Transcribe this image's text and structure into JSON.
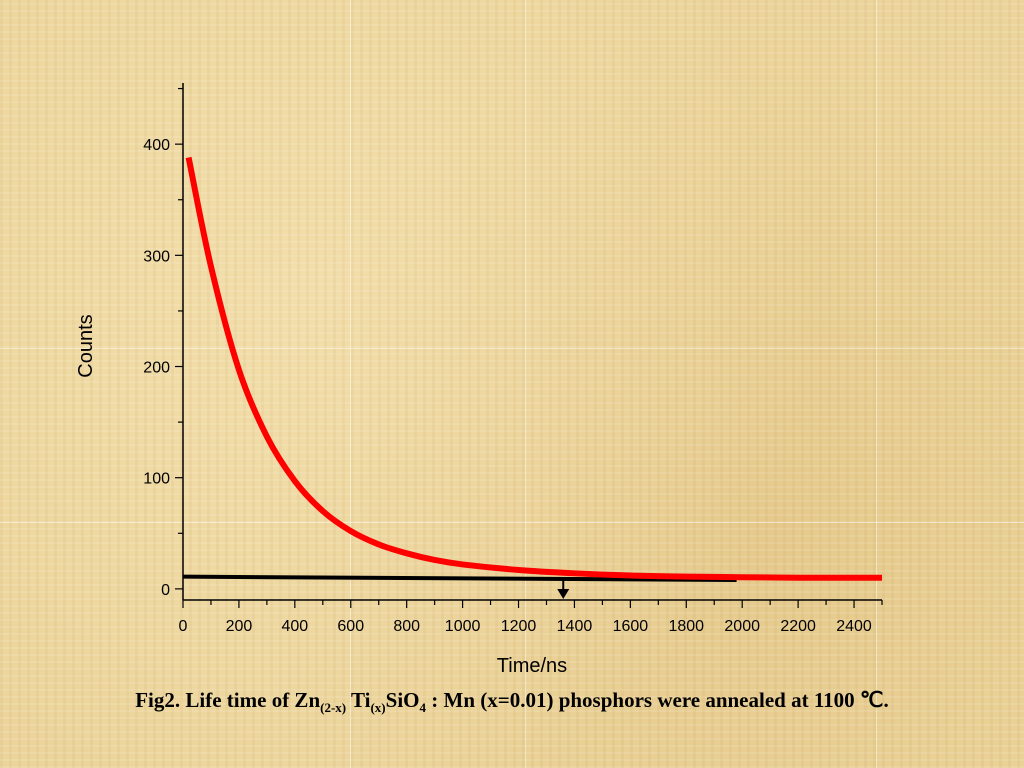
{
  "chart_data": {
    "type": "line",
    "xlabel": "Time/ns",
    "ylabel": "Counts",
    "xlim": [
      0,
      2500
    ],
    "ylim": [
      -10,
      455
    ],
    "x_ticks": [
      0,
      200,
      400,
      600,
      800,
      1000,
      1200,
      1400,
      1600,
      1800,
      2000,
      2200,
      2400
    ],
    "y_ticks": [
      0,
      100,
      200,
      300,
      400
    ],
    "grid": false,
    "series": [
      {
        "color": "#ff0000",
        "x": [
          20,
          100,
          200,
          300,
          400,
          500,
          600,
          700,
          800,
          900,
          1000,
          1200,
          1400,
          1600,
          1800,
          2000,
          2200,
          2400,
          2500
        ],
        "y": [
          388,
          290,
          197,
          137,
          97,
          70,
          52,
          40,
          32,
          26,
          22,
          17,
          14,
          12,
          11,
          10.5,
          10,
          10,
          10
        ]
      }
    ],
    "annotations": [
      {
        "type": "baseline",
        "color": "#000000",
        "x": [
          0,
          1980
        ],
        "y": [
          11,
          8
        ]
      },
      {
        "type": "arrow-down",
        "color": "#000000",
        "x": 1360
      }
    ]
  },
  "caption": {
    "prefix": "Fig2. Life time of Zn",
    "sub1": "(2-x)",
    "mid1": " Ti",
    "sub2": "(x)",
    "mid2": "SiO",
    "sub3": "4",
    "suffix": " : Mn (x=0.01) phosphors were annealed at 1100 ℃."
  }
}
